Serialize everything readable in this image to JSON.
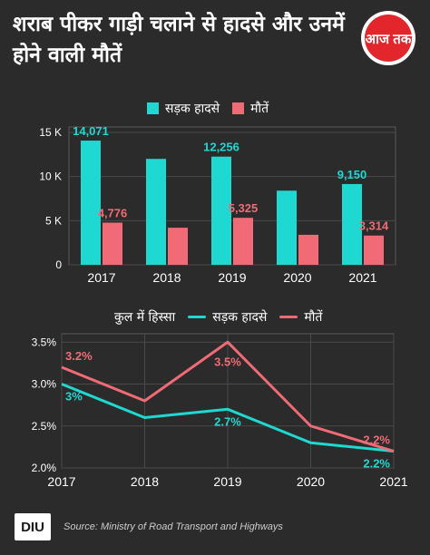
{
  "title": "शराब पीकर गाड़ी चलाने से हादसे और उनमें होने वाली मौतें",
  "logo_text": "आज तक",
  "footer": {
    "logo_text": "DIU",
    "source": "Source: Ministry of Road Transport and Highways"
  },
  "colors": {
    "accidents": "#1fd8d1",
    "deaths": "#f06b76",
    "logo_red": "#e3262b",
    "background": "#2b2b2b"
  },
  "chart_data": [
    {
      "type": "bar",
      "categories": [
        "2017",
        "2018",
        "2019",
        "2020",
        "2021"
      ],
      "series": [
        {
          "name": "सड़क हादसे",
          "values": [
            14071,
            12000,
            12256,
            8400,
            9150
          ]
        },
        {
          "name": "मौतें",
          "values": [
            4776,
            4200,
            5325,
            3400,
            3314
          ]
        }
      ],
      "data_labels": [
        {
          "series": 0,
          "index": 0,
          "text": "14,071"
        },
        {
          "series": 1,
          "index": 0,
          "text": "4,776"
        },
        {
          "series": 0,
          "index": 2,
          "text": "12,256"
        },
        {
          "series": 1,
          "index": 2,
          "text": "5,325"
        },
        {
          "series": 0,
          "index": 4,
          "text": "9,150"
        },
        {
          "series": 1,
          "index": 4,
          "text": "3,314"
        }
      ],
      "yticks": [
        {
          "value": 0,
          "label": "0"
        },
        {
          "value": 5000,
          "label": "5 K"
        },
        {
          "value": 10000,
          "label": "10 K"
        },
        {
          "value": 15000,
          "label": "15 K"
        }
      ],
      "ylim": [
        0,
        15000
      ],
      "legend": "top",
      "grid": true
    },
    {
      "type": "line",
      "title": "कुल में हिस्सा",
      "categories": [
        "2017",
        "2018",
        "2019",
        "2020",
        "2021"
      ],
      "series": [
        {
          "name": "सड़क हादसे",
          "values": [
            3.0,
            2.6,
            2.7,
            2.3,
            2.2
          ]
        },
        {
          "name": "मौतें",
          "values": [
            3.2,
            2.8,
            3.5,
            2.5,
            2.2
          ]
        }
      ],
      "data_labels": [
        {
          "series": 1,
          "index": 0,
          "text": "3.2%"
        },
        {
          "series": 0,
          "index": 0,
          "text": "3%"
        },
        {
          "series": 1,
          "index": 2,
          "text": "3.5%"
        },
        {
          "series": 0,
          "index": 2,
          "text": "2.7%"
        },
        {
          "series": 1,
          "index": 4,
          "text": "2.2%"
        },
        {
          "series": 0,
          "index": 4,
          "text": "2.2%"
        }
      ],
      "yticks": [
        {
          "value": 2.0,
          "label": "2.0%"
        },
        {
          "value": 2.5,
          "label": "2.5%"
        },
        {
          "value": 3.0,
          "label": "3.0%"
        },
        {
          "value": 3.5,
          "label": "3.5%"
        }
      ],
      "ylim": [
        2.0,
        3.6
      ],
      "legend": "top",
      "grid": true
    }
  ]
}
